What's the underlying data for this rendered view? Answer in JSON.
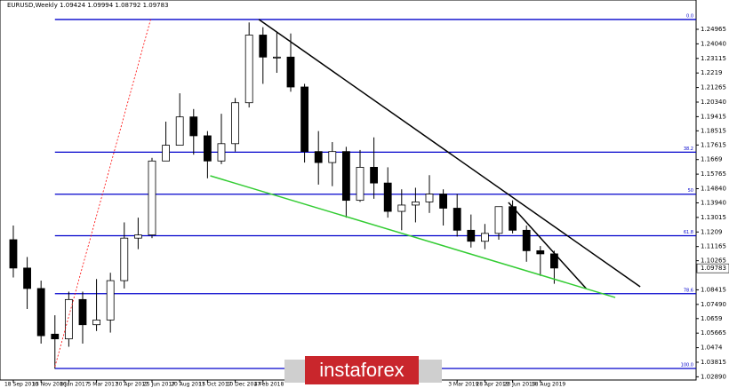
{
  "chart_data": {
    "type": "candlestick",
    "title": "EURUSD,Weekly  1.09424 1.09994 1.08792 1.09783",
    "categories": [
      "18 Sep 2016",
      null,
      "13 Nov 2016",
      null,
      "8 Jan 2017",
      null,
      "5 Mar 2017",
      null,
      "30 Apr 2017",
      null,
      "25 Jun 2017",
      null,
      "20 Aug 2017",
      null,
      "15 Oct 2017",
      null,
      "10 Dec 2017",
      null,
      "4 Feb 2018",
      null,
      null,
      null,
      null,
      null,
      null,
      null,
      null,
      null,
      null,
      null,
      null,
      null,
      "3 Mar 2019",
      null,
      "28 Apr 2019",
      null,
      "23 Jun 2019",
      null,
      "18 Aug 2019",
      null
    ],
    "open": [
      1.116,
      1.098,
      1.085,
      1.056,
      1.053,
      1.078,
      1.062,
      1.065,
      1.09,
      1.117,
      1.119,
      1.166,
      1.176,
      1.194,
      1.182,
      1.166,
      1.177,
      1.203,
      1.246,
      1.232,
      1.232,
      1.213,
      1.172,
      1.165,
      1.172,
      1.141,
      1.162,
      1.152,
      1.134,
      1.138,
      1.14,
      1.145,
      1.136,
      1.122,
      1.115,
      1.12,
      1.137,
      1.122,
      1.109,
      1.107
    ],
    "high": [
      1.125,
      1.105,
      1.09,
      1.068,
      1.083,
      1.083,
      1.091,
      1.095,
      1.127,
      1.13,
      1.168,
      1.191,
      1.209,
      1.199,
      1.185,
      1.196,
      1.206,
      1.254,
      1.251,
      1.248,
      1.247,
      1.215,
      1.185,
      1.178,
      1.175,
      1.173,
      1.181,
      1.162,
      1.148,
      1.149,
      1.157,
      1.148,
      1.145,
      1.132,
      1.126,
      1.137,
      1.141,
      1.125,
      1.112,
      1.109
    ],
    "low": [
      1.092,
      1.072,
      1.05,
      1.034,
      1.048,
      1.05,
      1.058,
      1.057,
      1.085,
      1.11,
      1.117,
      1.166,
      1.176,
      1.17,
      1.155,
      1.164,
      1.172,
      1.2,
      1.215,
      1.222,
      1.21,
      1.165,
      1.151,
      1.15,
      1.13,
      1.14,
      1.142,
      1.13,
      1.122,
      1.127,
      1.133,
      1.125,
      1.118,
      1.111,
      1.11,
      1.116,
      1.12,
      1.102,
      1.093,
      1.088
    ],
    "close": [
      1.098,
      1.085,
      1.055,
      1.053,
      1.078,
      1.062,
      1.065,
      1.09,
      1.117,
      1.119,
      1.166,
      1.176,
      1.194,
      1.182,
      1.166,
      1.177,
      1.203,
      1.246,
      1.232,
      1.232,
      1.213,
      1.172,
      1.165,
      1.172,
      1.141,
      1.162,
      1.152,
      1.134,
      1.138,
      1.14,
      1.145,
      1.136,
      1.122,
      1.115,
      1.12,
      1.137,
      1.122,
      1.109,
      1.107,
      1.098
    ],
    "xlim": [
      -0.96,
      49.23
    ],
    "ylim": [
      1.02687,
      1.26826
    ],
    "yticks": [
      1.24965,
      {
        "value": 1.2404,
        "label": "1.24040"
      },
      1.23115,
      1.2219,
      1.21265,
      {
        "value": 1.2034,
        "label": "1.20340"
      },
      1.19415,
      1.18515,
      1.17615,
      1.1669,
      1.15765,
      {
        "value": 1.1484,
        "label": "1.14840"
      },
      {
        "value": 1.1394,
        "label": "1.13940"
      },
      1.13015,
      1.1209,
      1.11165,
      1.10265,
      1.08415,
      {
        "value": 1.0749,
        "label": "1.07490"
      },
      1.0659,
      1.05665,
      1.0474,
      1.03815,
      {
        "value": 1.0289,
        "label": "1.02890"
      }
    ],
    "last_price": 1.09783,
    "fib_levels": [
      {
        "label": "0.0",
        "value": 1.2559
      },
      {
        "label": "38.2",
        "value": 1.1716
      },
      {
        "label": "50",
        "value": 1.1449
      },
      {
        "label": "61.8",
        "value": 1.1185
      },
      {
        "label": "78.6",
        "value": 1.0817
      },
      {
        "label": "100.0",
        "value": 1.0342
      }
    ],
    "fib_color": "#0000cc",
    "trendlines": [
      {
        "color": "#000000",
        "x": [
          17.7,
          45.2
        ],
        "y": [
          1.2559,
          1.0861
        ]
      },
      {
        "color": "#000000",
        "x": [
          35.7,
          41.3
        ],
        "y": [
          1.1397,
          1.085
        ]
      },
      {
        "color": "#33cc33",
        "x": [
          14.2,
          43.4
        ],
        "y": [
          1.1566,
          1.0793
        ]
      },
      {
        "color": "#ff0000",
        "dashed": true,
        "x": [
          3.0,
          9.9
        ],
        "y": [
          1.0353,
          1.2559
        ]
      }
    ],
    "watermark": "instaforex"
  }
}
